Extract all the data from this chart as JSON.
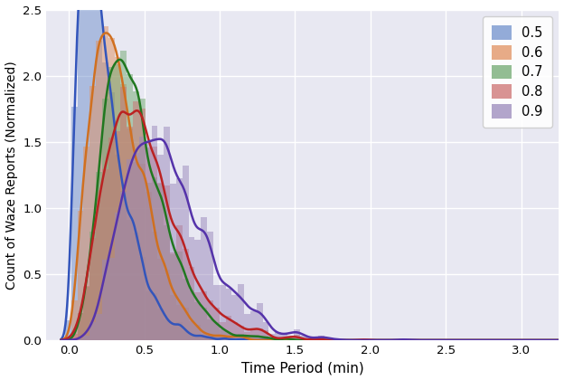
{
  "title": "",
  "xlabel": "Time Period (min)",
  "ylabel": "Count of Waze Reports (Normalized)",
  "xlim": [
    -0.15,
    3.25
  ],
  "ylim": [
    0.0,
    2.5
  ],
  "xticks": [
    0.0,
    0.5,
    1.0,
    1.5,
    2.0,
    2.5,
    3.0
  ],
  "yticks": [
    0.0,
    0.5,
    1.0,
    1.5,
    2.0,
    2.5
  ],
  "legend_labels": [
    "0.5",
    "0.6",
    "0.7",
    "0.8",
    "0.9"
  ],
  "hist_colors": [
    "#7090cc",
    "#e09060",
    "#70a870",
    "#cc7070",
    "#9988bb"
  ],
  "kde_colors": [
    "#3355bb",
    "#d07020",
    "#207820",
    "#bb2222",
    "#5533aa"
  ],
  "background_color": "#e8e8f2",
  "grid_color": "white",
  "alpha_hist": 0.5,
  "linewidth": 1.8,
  "bins": 80,
  "kde_bw_method": 0.15
}
